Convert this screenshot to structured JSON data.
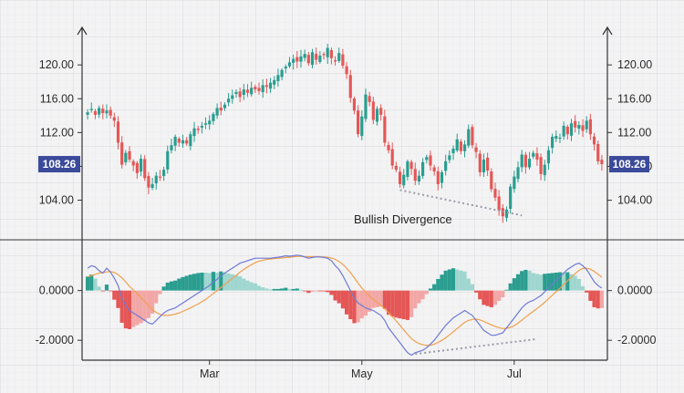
{
  "colors": {
    "background": "#f3f3f4",
    "grid": "#dcdce2",
    "axis": "#333333",
    "up": "#2a9d8f",
    "down": "#e45756",
    "hist_up_strong": "#2a9d8f",
    "hist_up_light": "#9fd6cf",
    "hist_down_strong": "#e45756",
    "hist_down_light": "#f2a7a6",
    "macd_line": "#6f7ad3",
    "signal_line": "#f0a04b",
    "badge": "#3b4a9a",
    "divergence": "#9a9aa8"
  },
  "chart_data": [
    {
      "type": "candlestick",
      "panel": "price",
      "title": "",
      "xlabel": "",
      "ylabel": "",
      "ylim": [
        100.5,
        122.5
      ],
      "yticks": [
        104,
        108,
        112,
        116,
        120
      ],
      "ytick_labels": [
        "104.00",
        "108.00",
        "112.00",
        "116.00",
        "120.00"
      ],
      "last_price": 108.26,
      "last_price_label": "108.26",
      "grid": true,
      "x_months": [
        {
          "label": "Mar",
          "index": 32
        },
        {
          "label": "May",
          "index": 72
        },
        {
          "label": "Jul",
          "index": 112
        }
      ],
      "closes": [
        114.4,
        114.8,
        114.1,
        114.9,
        114.3,
        114.6,
        114.0,
        113.4,
        110.8,
        108.2,
        109.6,
        108.8,
        108.1,
        107.2,
        108.9,
        106.6,
        105.5,
        105.9,
        106.9,
        106.7,
        107.6,
        109.8,
        110.5,
        111.5,
        110.8,
        111.1,
        110.7,
        111.8,
        112.5,
        112.3,
        112.8,
        113.1,
        113.4,
        114.2,
        114.9,
        114.6,
        115.3,
        116.0,
        116.4,
        116.8,
        116.2,
        117.1,
        116.7,
        117.3,
        117.1,
        116.9,
        117.6,
        117.4,
        117.9,
        118.2,
        118.8,
        119.4,
        119.8,
        120.3,
        120.7,
        120.4,
        121.0,
        121.3,
        120.2,
        121.5,
        120.6,
        121.1,
        121.2,
        122.0,
        120.8,
        120.4,
        121.4,
        119.9,
        118.9,
        116.1,
        114.6,
        111.8,
        113.9,
        116.5,
        115.6,
        113.5,
        114.8,
        114.1,
        110.8,
        109.9,
        108.1,
        107.6,
        105.9,
        107.0,
        108.6,
        107.7,
        106.3,
        106.9,
        108.5,
        109.1,
        108.1,
        107.4,
        105.9,
        107.3,
        108.6,
        109.3,
        110.1,
        111.2,
        109.8,
        110.6,
        112.4,
        110.5,
        109.7,
        107.3,
        108.8,
        107.5,
        105.3,
        104.3,
        102.8,
        102.1,
        102.9,
        105.6,
        106.8,
        107.9,
        109.4,
        107.9,
        108.9,
        109.6,
        108.8,
        107.1,
        108.2,
        109.9,
        111.5,
        111.6,
        111.4,
        112.8,
        111.8,
        113.1,
        112.6,
        112.9,
        112.2,
        113.4,
        111.8,
        110.6,
        108.6,
        108.26
      ],
      "series": [
        {
          "name": "",
          "kind": "annotation",
          "label": "Bullish Divergence",
          "from_index": 82,
          "to_index": 114,
          "from_value": 105.2,
          "to_value": 102.2
        }
      ]
    },
    {
      "type": "bar+line",
      "panel": "macd",
      "title": "",
      "xlabel": "",
      "ylabel": "",
      "ylim": [
        -2.8,
        1.6
      ],
      "yticks": [
        -2,
        0
      ],
      "ytick_labels": [
        "-2.0000",
        "0.0000"
      ],
      "grid": true,
      "macd": [
        0.9,
        1.0,
        0.95,
        0.8,
        0.7,
        0.9,
        0.75,
        0.5,
        0.2,
        -0.3,
        -0.6,
        -0.8,
        -0.9,
        -1.0,
        -1.1,
        -1.2,
        -1.3,
        -1.35,
        -1.2,
        -1.05,
        -0.9,
        -0.8,
        -0.75,
        -0.7,
        -0.6,
        -0.5,
        -0.4,
        -0.3,
        -0.2,
        -0.1,
        0.0,
        0.1,
        0.2,
        0.35,
        0.45,
        0.6,
        0.7,
        0.8,
        0.9,
        1.0,
        1.1,
        1.15,
        1.2,
        1.25,
        1.3,
        1.3,
        1.3,
        1.3,
        1.3,
        1.32,
        1.34,
        1.36,
        1.4,
        1.38,
        1.4,
        1.42,
        1.4,
        1.35,
        1.3,
        1.33,
        1.35,
        1.35,
        1.33,
        1.3,
        1.2,
        1.0,
        0.85,
        0.6,
        0.3,
        0.0,
        -0.3,
        -0.5,
        -0.6,
        -0.7,
        -0.75,
        -0.8,
        -0.9,
        -1.0,
        -1.2,
        -1.5,
        -1.7,
        -1.9,
        -2.1,
        -2.3,
        -2.5,
        -2.6,
        -2.5,
        -2.45,
        -2.4,
        -2.3,
        -2.15,
        -2.0,
        -1.8,
        -1.6,
        -1.4,
        -1.25,
        -1.1,
        -1.0,
        -0.9,
        -0.8,
        -0.9,
        -1.0,
        -1.2,
        -1.4,
        -1.6,
        -1.7,
        -1.8,
        -1.8,
        -1.75,
        -1.7,
        -1.5,
        -1.3,
        -1.1,
        -0.9,
        -0.7,
        -0.55,
        -0.45,
        -0.4,
        -0.3,
        -0.2,
        -0.05,
        0.1,
        0.25,
        0.4,
        0.55,
        0.7,
        0.85,
        0.95,
        1.05,
        1.1,
        1.0,
        0.85,
        0.6,
        0.35,
        0.2,
        0.1
      ],
      "signal": [
        0.55,
        0.6,
        0.65,
        0.7,
        0.72,
        0.75,
        0.76,
        0.73,
        0.64,
        0.51,
        0.35,
        0.17,
        0.02,
        -0.13,
        -0.28,
        -0.44,
        -0.61,
        -0.77,
        -0.88,
        -0.96,
        -1.0,
        -1.0,
        -0.98,
        -0.95,
        -0.9,
        -0.84,
        -0.77,
        -0.7,
        -0.62,
        -0.54,
        -0.45,
        -0.35,
        -0.24,
        -0.12,
        0.0,
        0.12,
        0.24,
        0.37,
        0.49,
        0.61,
        0.74,
        0.85,
        0.95,
        1.04,
        1.12,
        1.18,
        1.22,
        1.25,
        1.27,
        1.28,
        1.3,
        1.31,
        1.33,
        1.34,
        1.36,
        1.37,
        1.38,
        1.37,
        1.36,
        1.36,
        1.36,
        1.36,
        1.35,
        1.34,
        1.31,
        1.25,
        1.17,
        1.05,
        0.9,
        0.72,
        0.52,
        0.3,
        0.1,
        -0.07,
        -0.22,
        -0.36,
        -0.48,
        -0.6,
        -0.74,
        -0.89,
        -1.05,
        -1.22,
        -1.4,
        -1.58,
        -1.76,
        -1.93,
        -2.05,
        -2.13,
        -2.18,
        -2.21,
        -2.2,
        -2.16,
        -2.09,
        -2.0,
        -1.9,
        -1.78,
        -1.66,
        -1.53,
        -1.4,
        -1.28,
        -1.2,
        -1.16,
        -1.15,
        -1.18,
        -1.24,
        -1.31,
        -1.38,
        -1.44,
        -1.49,
        -1.53,
        -1.52,
        -1.48,
        -1.41,
        -1.31,
        -1.19,
        -1.07,
        -0.95,
        -0.84,
        -0.72,
        -0.6,
        -0.47,
        -0.33,
        -0.19,
        -0.05,
        0.09,
        0.24,
        0.39,
        0.54,
        0.68,
        0.81,
        0.89,
        0.9,
        0.86,
        0.77,
        0.65,
        0.54
      ],
      "divergence": {
        "from_index": 86,
        "to_index": 118,
        "from_value": -2.55,
        "to_value": -1.95
      }
    }
  ]
}
